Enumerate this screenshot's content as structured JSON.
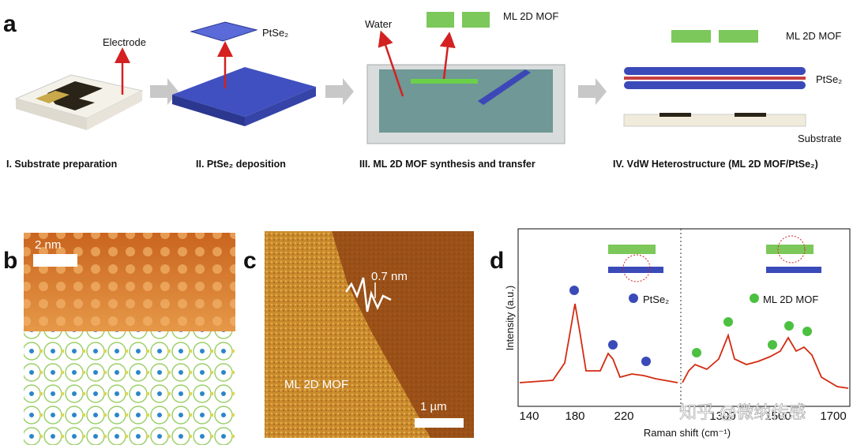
{
  "panel_a": {
    "label": "a",
    "callouts": {
      "electrode": "Electrode",
      "ptse2_top": "PtSe₂",
      "water": "Water",
      "mof_top": "ML 2D MOF",
      "mof_right": "ML 2D MOF",
      "ptse2_right": "PtSe₂",
      "substrate": "Substrate"
    },
    "steps": [
      "I. Substrate preparation",
      "II. PtSe₂ deposition",
      "III. ML 2D MOF synthesis and transfer",
      "IV. VdW Heterostructure (ML 2D MOF/PtSe₂)"
    ]
  },
  "panel_b": {
    "label": "b",
    "scale_bar": "2 nm"
  },
  "panel_c": {
    "label": "c",
    "step_height": "0.7 nm",
    "region_label": "ML 2D MOF",
    "scale_bar": "1 µm"
  },
  "panel_d": {
    "label": "d",
    "legend": [
      "PtSe₂",
      "ML 2D MOF"
    ],
    "y_label": "Intensity (a.u.)",
    "x_label": "Raman shift (cm⁻¹)",
    "xticks_left": [
      "140",
      "180",
      "220"
    ],
    "xticks_right": [
      "1300",
      "1500",
      "1700"
    ]
  },
  "watermark": "知乎 @微纳传感"
}
